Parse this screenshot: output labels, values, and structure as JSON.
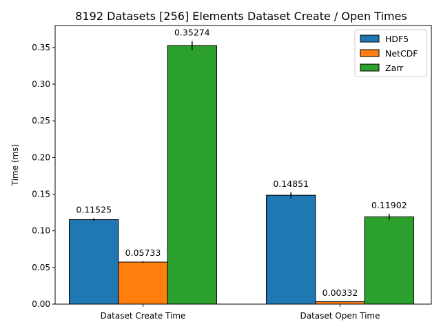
{
  "chart_data": {
    "type": "bar",
    "title": "8192 Datasets [256] Elements Dataset Create / Open Times",
    "xlabel": "",
    "ylabel": "Time (ms)",
    "ylim": [
      0,
      0.38
    ],
    "yticks": [
      "0.00",
      "0.05",
      "0.10",
      "0.15",
      "0.20",
      "0.25",
      "0.30",
      "0.35"
    ],
    "categories": [
      "Dataset Create Time",
      "Dataset Open Time"
    ],
    "series": [
      {
        "name": "HDF5",
        "color": "#1f77b4",
        "values": [
          0.11525,
          0.14851
        ],
        "errors": [
          0.002,
          0.004
        ],
        "labels": [
          "0.11525",
          "0.14851"
        ]
      },
      {
        "name": "NetCDF",
        "color": "#ff7f0e",
        "values": [
          0.05733,
          0.00332
        ],
        "errors": [
          0.001,
          0.0005
        ],
        "labels": [
          "0.05733",
          "0.00332"
        ]
      },
      {
        "name": "Zarr",
        "color": "#2ca02c",
        "values": [
          0.35274,
          0.11902
        ],
        "errors": [
          0.006,
          0.004
        ],
        "labels": [
          "0.35274",
          "0.11902"
        ]
      }
    ],
    "legend": "top-right",
    "grid": false
  }
}
